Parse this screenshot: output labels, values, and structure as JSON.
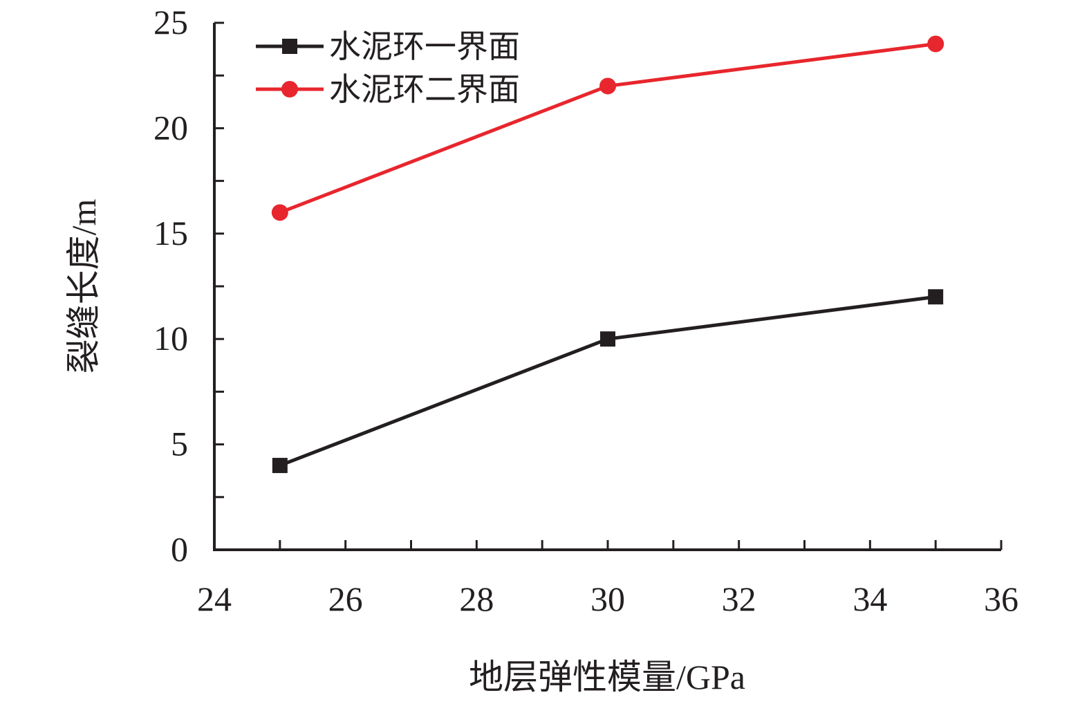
{
  "chart_data": {
    "type": "line",
    "xlabel": "地层弹性模量/GPa",
    "ylabel": "裂缝长度/m",
    "xlim": [
      24,
      36
    ],
    "ylim": [
      0,
      25
    ],
    "xticks": [
      24,
      26,
      28,
      30,
      32,
      34,
      36
    ],
    "yticks": [
      0,
      5,
      10,
      15,
      20,
      25
    ],
    "x": [
      25,
      30,
      35
    ],
    "legend_position": "top-left",
    "grid": false,
    "series": [
      {
        "name": "水泥环一界面",
        "values": [
          4,
          10,
          12
        ],
        "color": "#231f20",
        "marker": "square"
      },
      {
        "name": "水泥环二界面",
        "values": [
          16,
          22,
          24
        ],
        "color": "#e8262d",
        "marker": "circle"
      }
    ]
  }
}
